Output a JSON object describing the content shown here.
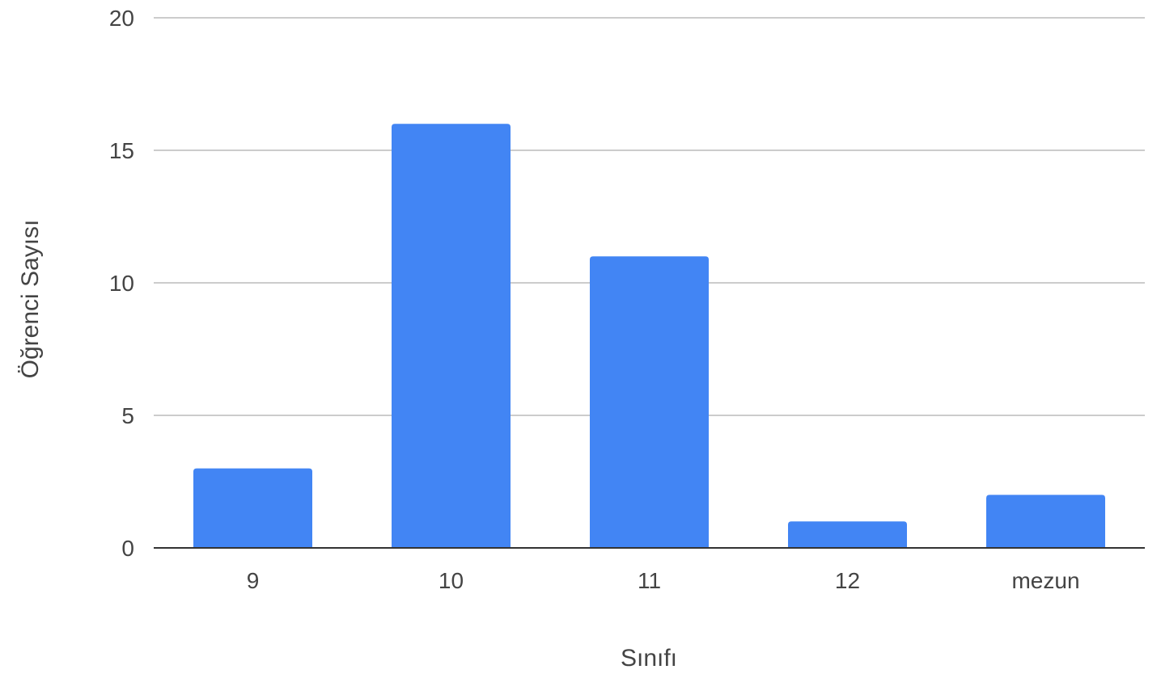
{
  "chart_data": {
    "type": "bar",
    "title": "",
    "xlabel": "Sınıfı",
    "ylabel": "Öğrenci Sayısı",
    "categories": [
      "9",
      "10",
      "11",
      "12",
      "mezun"
    ],
    "values": [
      3,
      16,
      11,
      1,
      2
    ],
    "ylim": [
      0,
      20
    ],
    "yticks": [
      "0",
      "5",
      "10",
      "15",
      "20"
    ],
    "grid": true,
    "legend": "none",
    "colors": {
      "bar": "#4285f4",
      "grid": "#cccccc",
      "axis": "#333333"
    }
  }
}
